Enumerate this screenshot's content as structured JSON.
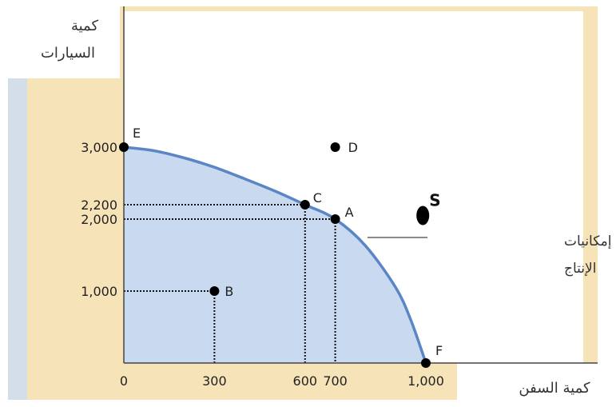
{
  "chart_data": {
    "type": "line",
    "title": "",
    "xlabel": "كمية السفن",
    "ylabel_lines": [
      "كمية",
      "السيارات"
    ],
    "xlim": [
      0,
      1000
    ],
    "ylim": [
      0,
      3000
    ],
    "x_ticks": [
      {
        "value": 0,
        "label": "0"
      },
      {
        "value": 300,
        "label": "300"
      },
      {
        "value": 600,
        "label": "600"
      },
      {
        "value": 700,
        "label": "700"
      },
      {
        "value": 1000,
        "label": "1,000"
      }
    ],
    "y_ticks": [
      {
        "value": 1000,
        "label": "1,000"
      },
      {
        "value": 2000,
        "label": "2,000"
      },
      {
        "value": 2200,
        "label": "2,200"
      },
      {
        "value": 3000,
        "label": "3,000"
      }
    ],
    "curve": {
      "label_lines": [
        "منحنى إمكانيات",
        "الإنتاج"
      ],
      "x": [
        0,
        100,
        200,
        300,
        400,
        500,
        600,
        700,
        800,
        900,
        950,
        1000
      ],
      "y": [
        3000,
        2950,
        2850,
        2720,
        2560,
        2390,
        2200,
        2000,
        1630,
        1050,
        600,
        0
      ]
    },
    "points": [
      {
        "label": "E",
        "x": 0,
        "y": 3000
      },
      {
        "label": "C",
        "x": 600,
        "y": 2200
      },
      {
        "label": "A",
        "x": 700,
        "y": 2000
      },
      {
        "label": "B",
        "x": 300,
        "y": 1000
      },
      {
        "label": "D",
        "x": 700,
        "y": 3000
      },
      {
        "label": "F",
        "x": 1000,
        "y": 0
      }
    ],
    "special_point": {
      "label": "S",
      "x": 990,
      "y": 2050
    },
    "dotted_guides": [
      "C",
      "A",
      "B"
    ],
    "colors": {
      "curve": "#5b86c5",
      "feasible_fill": "#c9daf0",
      "background_panel": "#f6e3b8",
      "left_band": "#d4dee8",
      "points": "#000000"
    }
  }
}
